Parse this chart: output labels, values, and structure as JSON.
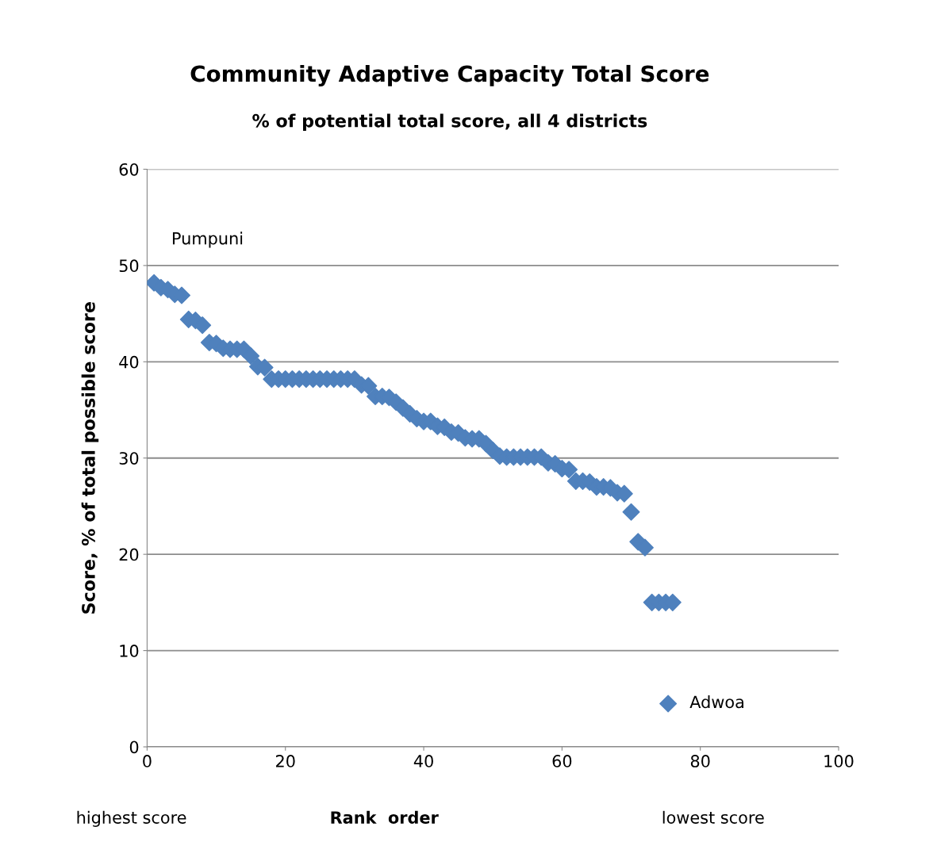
{
  "chart_data": {
    "type": "scatter",
    "title": "Community Adaptive Capacity Total Score",
    "subtitle": "% of potential total score, all 4 districts",
    "xlabel": "Rank  order",
    "ylabel": "Score, % of total possible score",
    "x": [
      1,
      2,
      3,
      4,
      5,
      6,
      7,
      8,
      9,
      10,
      11,
      12,
      13,
      14,
      15,
      16,
      17,
      18,
      19,
      20,
      21,
      22,
      23,
      24,
      25,
      26,
      27,
      28,
      29,
      30,
      31,
      32,
      33,
      34,
      35,
      36,
      37,
      38,
      39,
      40,
      41,
      42,
      43,
      44,
      45,
      46,
      47,
      48,
      49,
      50,
      51,
      52,
      53,
      54,
      55,
      56,
      57,
      58,
      59,
      60,
      61,
      62,
      63,
      64,
      65,
      66,
      67,
      68,
      69,
      70,
      71,
      72,
      73,
      74,
      75,
      76
    ],
    "series": [
      {
        "name": "Adwoa",
        "color": "#4f81bd",
        "values": [
          48.2,
          47.7,
          47.5,
          47.0,
          46.9,
          44.4,
          44.3,
          43.8,
          42.0,
          41.9,
          41.4,
          41.3,
          41.3,
          41.3,
          40.6,
          39.5,
          39.4,
          38.2,
          38.2,
          38.2,
          38.2,
          38.2,
          38.2,
          38.2,
          38.2,
          38.2,
          38.2,
          38.2,
          38.2,
          38.2,
          37.6,
          37.5,
          36.4,
          36.4,
          36.3,
          35.8,
          35.2,
          34.6,
          34.1,
          33.8,
          33.8,
          33.3,
          33.2,
          32.7,
          32.6,
          32.1,
          32.0,
          32.0,
          31.5,
          30.8,
          30.2,
          30.1,
          30.1,
          30.1,
          30.1,
          30.1,
          30.1,
          29.5,
          29.4,
          28.9,
          28.8,
          27.6,
          27.6,
          27.5,
          27.0,
          27.0,
          26.9,
          26.4,
          26.3,
          24.4,
          21.3,
          20.7,
          15.0,
          15.0,
          15.0,
          15.0
        ]
      }
    ],
    "xlim": [
      0,
      100
    ],
    "xticks": [
      0,
      20,
      40,
      60,
      80,
      100
    ],
    "ylim": [
      0,
      60
    ],
    "yticks": [
      0,
      10,
      20,
      30,
      40,
      50,
      60
    ],
    "grid": "y",
    "legend": "bottom right",
    "marker": "diamond",
    "annotations": [
      "Pumpuni",
      "highest score",
      "lowest score"
    ]
  }
}
